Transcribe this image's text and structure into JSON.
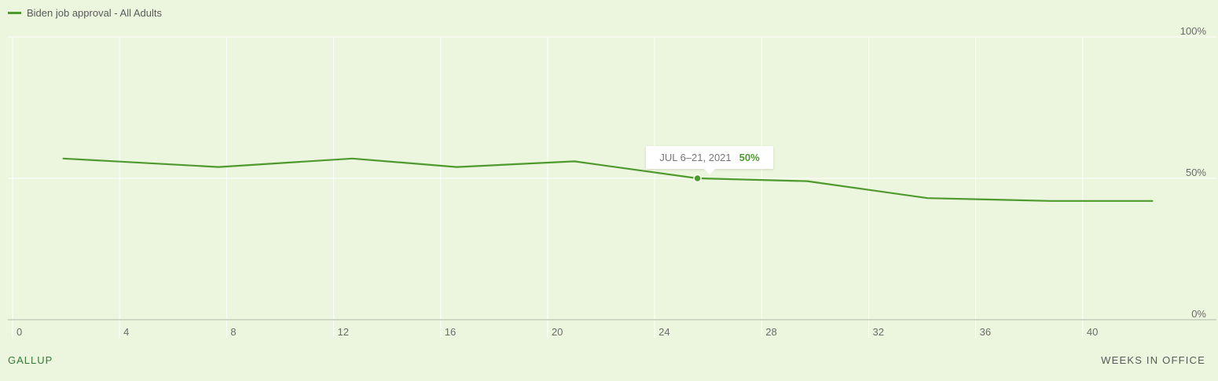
{
  "legend": {
    "label": "Biden job approval - All Adults",
    "color": "#4e9a2e"
  },
  "footer": {
    "source": "GALLUP",
    "axis_title": "WEEKS IN OFFICE"
  },
  "tooltip": {
    "date": "JUL 6–21, 2021",
    "value": "50%"
  },
  "colors": {
    "background": "#ecf5dd",
    "line": "#4e9a2e",
    "grid": "#ffffff",
    "axis": "#cfd8c4",
    "tick_text": "#6b6b6b"
  },
  "chart_data": {
    "type": "line",
    "title": "",
    "xlabel": "WEEKS IN OFFICE",
    "ylabel": "",
    "xlim": [
      0,
      43
    ],
    "ylim": [
      0,
      100
    ],
    "x_ticks": [
      0,
      4,
      8,
      12,
      16,
      20,
      24,
      28,
      32,
      36,
      40
    ],
    "x_tick_labels": [
      "0",
      "4",
      "8",
      "12",
      "16",
      "20",
      "24",
      "28",
      "32",
      "36",
      "40"
    ],
    "y_ticks": [
      0,
      50,
      100
    ],
    "y_tick_labels": [
      "0%",
      "50%",
      "100%"
    ],
    "series": [
      {
        "name": "Biden job approval - All Adults",
        "x": [
          1.9,
          7.7,
          12.7,
          16.6,
          21.0,
          25.6,
          29.7,
          34.2,
          38.8,
          42.6
        ],
        "y": [
          57,
          54,
          57,
          54,
          56,
          50,
          49,
          43,
          42,
          42
        ]
      }
    ],
    "highlight": {
      "series": 0,
      "index": 5
    },
    "grid": true,
    "legend_position": "top-left"
  }
}
